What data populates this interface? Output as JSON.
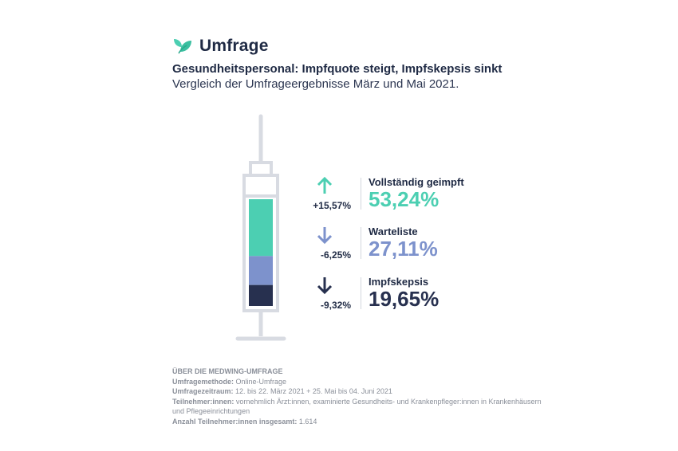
{
  "brand": {
    "name": "Umfrage"
  },
  "title": "Gesundheitspersonal: Impfquote steigt, Impfskepsis sinkt",
  "subtitle": "Vergleich der Umfrageergebnisse März und Mai 2021.",
  "colors": {
    "teal": "#4ccfb2",
    "periwinkle": "#7d92cc",
    "navy": "#27304f",
    "syringe_outline": "#d8dbe2"
  },
  "chart_data": {
    "type": "bar",
    "stacked": true,
    "title": "Gesundheitspersonal: Impfquote steigt, Impfskepsis sinkt",
    "categories": [
      "Vollständig geimpft",
      "Warteliste",
      "Impfskepsis"
    ],
    "values": [
      53.24,
      27.11,
      19.65
    ],
    "value_labels": [
      "53,24%",
      "27,11%",
      "19,65%"
    ],
    "changes": [
      15.57,
      -6.25,
      -9.32
    ],
    "change_labels": [
      "+15,57%",
      "-6,25%",
      "-9,32%"
    ],
    "trend_icons": [
      "arrow-up-icon",
      "arrow-down-icon",
      "arrow-down-icon"
    ],
    "series_colors": [
      "#4ccfb2",
      "#7d92cc",
      "#27304f"
    ]
  },
  "footer": {
    "heading": "ÜBER DIE MEDWING-UMFRAGE",
    "lines": [
      {
        "label": "Umfragemethode:",
        "text": " Online-Umfrage"
      },
      {
        "label": "Umfragezeitraum:",
        "text": " 12. bis 22. März 2021 + 25. Mai bis 04. Juni 2021"
      },
      {
        "label": "Teilnehmer:innen:",
        "text": " vornehmlich Ärzt:innen, examinierte Gesundheits- und Krankenpfleger:innen in Krankenhäusern und Pflegeeinrichtungen"
      },
      {
        "label": "Anzahl Teilnehmer:innen insgesamt:",
        "text": " 1.614"
      }
    ]
  }
}
